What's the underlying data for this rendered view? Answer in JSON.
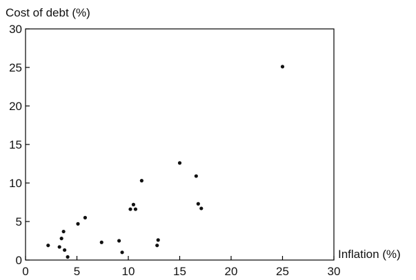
{
  "chart_data": {
    "type": "scatter",
    "title": "",
    "xlabel": "Inflation (%)",
    "ylabel": "Cost of debt (%)",
    "xlim": [
      0,
      30
    ],
    "ylim": [
      0,
      30
    ],
    "xticks": [
      0,
      5,
      10,
      15,
      20,
      25,
      30
    ],
    "yticks": [
      0,
      5,
      10,
      15,
      20,
      25,
      30
    ],
    "grid": false,
    "legend": "none",
    "colors": {
      "points": "#111111",
      "axes": "#000000",
      "background": "#ffffff"
    },
    "series": [
      {
        "points": [
          {
            "x": 2.2,
            "y": 1.9
          },
          {
            "x": 3.3,
            "y": 1.7
          },
          {
            "x": 3.5,
            "y": 2.8
          },
          {
            "x": 3.7,
            "y": 3.7
          },
          {
            "x": 3.8,
            "y": 1.3
          },
          {
            "x": 4.1,
            "y": 0.4
          },
          {
            "x": 5.1,
            "y": 4.7
          },
          {
            "x": 5.8,
            "y": 5.5
          },
          {
            "x": 7.4,
            "y": 2.3
          },
          {
            "x": 9.1,
            "y": 2.5
          },
          {
            "x": 9.4,
            "y": 1.0
          },
          {
            "x": 10.2,
            "y": 6.6
          },
          {
            "x": 10.5,
            "y": 7.2
          },
          {
            "x": 10.7,
            "y": 6.6
          },
          {
            "x": 11.3,
            "y": 10.3
          },
          {
            "x": 12.8,
            "y": 1.9
          },
          {
            "x": 12.9,
            "y": 2.6
          },
          {
            "x": 15.0,
            "y": 12.6
          },
          {
            "x": 16.6,
            "y": 10.9
          },
          {
            "x": 16.8,
            "y": 7.3
          },
          {
            "x": 17.1,
            "y": 6.7
          },
          {
            "x": 25.0,
            "y": 25.1
          }
        ]
      }
    ]
  }
}
